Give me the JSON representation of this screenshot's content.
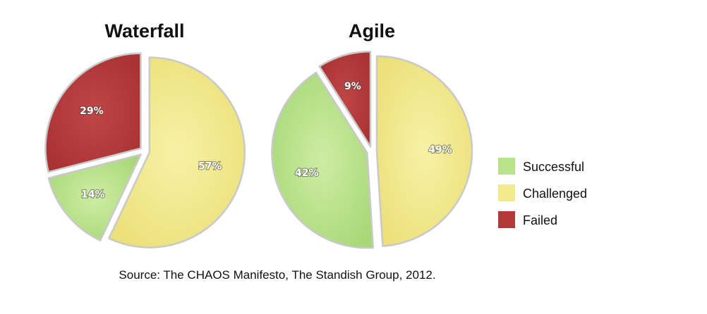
{
  "chart_data": [
    {
      "type": "pie",
      "title": "Waterfall",
      "slices": [
        {
          "category": "Challenged",
          "value": 57,
          "label": "57%"
        },
        {
          "category": "Successful",
          "value": 14,
          "label": "14%"
        },
        {
          "category": "Failed",
          "value": 29,
          "label": "29%"
        }
      ]
    },
    {
      "type": "pie",
      "title": "Agile",
      "slices": [
        {
          "category": "Challenged",
          "value": 49,
          "label": "49%"
        },
        {
          "category": "Successful",
          "value": 42,
          "label": "42%"
        },
        {
          "category": "Failed",
          "value": 9,
          "label": "9%"
        }
      ]
    }
  ],
  "legend": {
    "placement": "right",
    "items": [
      {
        "label": "Successful",
        "color": "#b9e38a"
      },
      {
        "label": "Challenged",
        "color": "#f2ea8d"
      },
      {
        "label": "Failed",
        "color": "#b43a3a"
      }
    ]
  },
  "source": "Source: The CHAOS Manifesto, The Standish Group, 2012."
}
